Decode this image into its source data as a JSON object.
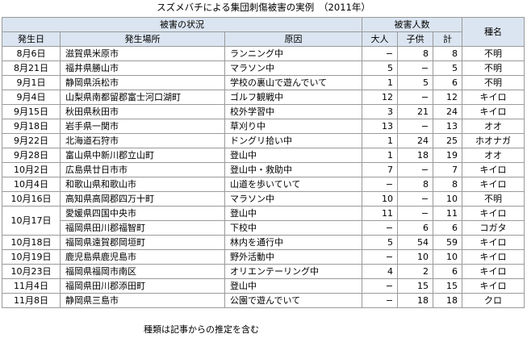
{
  "title": "スズメバチによる集団刺傷被害の実例　（2011年）",
  "header": {
    "situation": "被害の状況",
    "victims": "被害人数",
    "species": "種名",
    "date": "発生日",
    "place": "発生場所",
    "cause": "原因",
    "adults": "大人",
    "children": "子供",
    "total": "計"
  },
  "rows": [
    {
      "date": "8月6日",
      "place": "滋賀県米原市",
      "cause": "ランニング中",
      "adults": "−",
      "children": "8",
      "total": "8",
      "species": "不明"
    },
    {
      "date": "8月21日",
      "place": "福井県勝山市",
      "cause": "マラソン中",
      "adults": "5",
      "children": "−",
      "total": "5",
      "species": "不明"
    },
    {
      "date": "9月1日",
      "place": "静岡県浜松市",
      "cause": "学校の裏山で遊んでいて",
      "adults": "1",
      "children": "5",
      "total": "6",
      "species": "不明"
    },
    {
      "date": "9月4日",
      "place": "山梨県南都留郡富士河口湖町",
      "cause": "ゴルフ観戦中",
      "adults": "12",
      "children": "−",
      "total": "12",
      "species": "キイロ"
    },
    {
      "date": "9月15日",
      "place": "秋田県秋田市",
      "cause": "校外学習中",
      "adults": "3",
      "children": "21",
      "total": "24",
      "species": "キイロ"
    },
    {
      "date": "9月18日",
      "place": "岩手県一関市",
      "cause": "草刈り中",
      "adults": "13",
      "children": "−",
      "total": "13",
      "species": "オオ"
    },
    {
      "date": "9月22日",
      "place": "北海道石狩市",
      "cause": "ドングリ拾い中",
      "adults": "1",
      "children": "24",
      "total": "25",
      "species": "ホオナガ"
    },
    {
      "date": "9月28日",
      "place": "富山県中新川郡立山町",
      "cause": "登山中",
      "adults": "1",
      "children": "18",
      "total": "19",
      "species": "オオ"
    },
    {
      "date": "10月2日",
      "place": "広島県廿日市市",
      "cause": "登山中・救助中",
      "adults": "7",
      "children": "−",
      "total": "7",
      "species": "キイロ"
    },
    {
      "date": "10月4日",
      "place": "和歌山県和歌山市",
      "cause": "山道を歩いていて",
      "adults": "−",
      "children": "8",
      "total": "8",
      "species": "キイロ"
    },
    {
      "date": "10月16日",
      "place": "高知県高岡郡四万十町",
      "cause": "マラソン中",
      "adults": "10",
      "children": "−",
      "total": "10",
      "species": "不明"
    },
    {
      "date": "10月17日",
      "place": "愛媛県四国中央市",
      "cause": "登山中",
      "adults": "11",
      "children": "−",
      "total": "11",
      "species": "キイロ"
    },
    {
      "date": "",
      "place": "福岡県田川郡福智町",
      "cause": "下校中",
      "adults": "−",
      "children": "6",
      "total": "6",
      "species": "コガタ"
    },
    {
      "date": "10月18日",
      "place": "福岡県遠賀郡岡垣町",
      "cause": "林内を通行中",
      "adults": "5",
      "children": "54",
      "total": "59",
      "species": "キイロ"
    },
    {
      "date": "10月19日",
      "place": "鹿児島県鹿児島市",
      "cause": "野外活動中",
      "adults": "−",
      "children": "10",
      "total": "10",
      "species": "キイロ"
    },
    {
      "date": "10月23日",
      "place": "福岡県福岡市南区",
      "cause": "オリエンテーリング中",
      "adults": "4",
      "children": "2",
      "total": "6",
      "species": "キイロ"
    },
    {
      "date": "11月4日",
      "place": "福岡県田川郡添田町",
      "cause": "登山中",
      "adults": "−",
      "children": "15",
      "total": "15",
      "species": "キイロ"
    },
    {
      "date": "11月8日",
      "place": "静岡県三島市",
      "cause": "公園で遊んでいて",
      "adults": "−",
      "children": "18",
      "total": "18",
      "species": "クロ"
    }
  ],
  "footnote": "種類は記事からの推定を含む"
}
